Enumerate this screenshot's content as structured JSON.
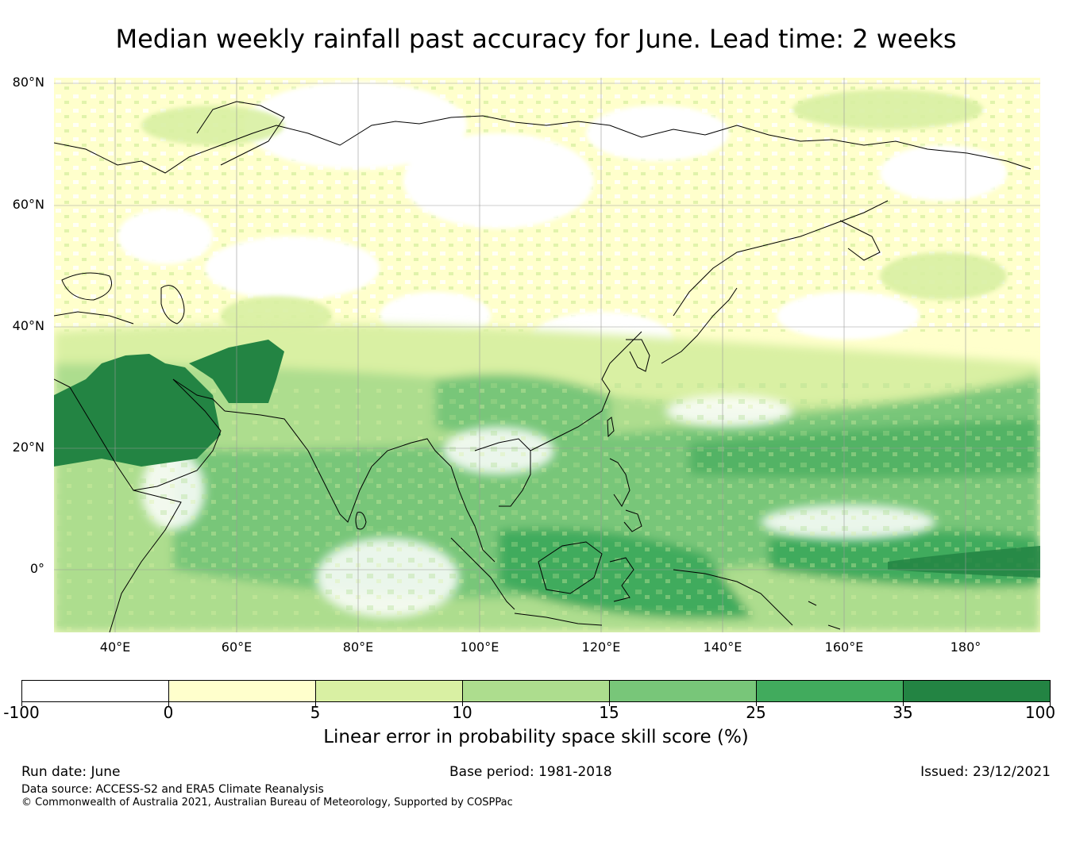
{
  "title": "Median weekly rainfall past accuracy for June. Lead time: 2 weeks",
  "map": {
    "lat_labels": [
      "80°N",
      "60°N",
      "40°N",
      "20°N",
      "0°"
    ],
    "lon_labels": [
      "40°E",
      "60°E",
      "80°E",
      "100°E",
      "120°E",
      "140°E",
      "160°E",
      "180°"
    ],
    "skill_zones": [
      {
        "region": "Northern Asia and Siberia",
        "category": "0-5"
      },
      {
        "region": "Arabian Peninsula",
        "category": "35-100"
      },
      {
        "region": "Iran and Afghanistan",
        "category": "35-100"
      },
      {
        "region": "Indian Ocean and South Asia",
        "category": "10-25"
      },
      {
        "region": "Maritime Continent",
        "category": "25-35"
      },
      {
        "region": "Western and Central Pacific",
        "category": "15-35"
      },
      {
        "region": "Equatorial Pacific near 180°",
        "category": "35-100"
      }
    ]
  },
  "colorbar": {
    "ticks": [
      "-100",
      "0",
      "5",
      "10",
      "15",
      "25",
      "35",
      "100"
    ],
    "colors": [
      "#ffffff",
      "#ffffcc",
      "#d9f0a3",
      "#addd8e",
      "#78c679",
      "#41ab5d",
      "#238443"
    ],
    "label": "Linear error in probability space skill score (%)"
  },
  "footer": {
    "run_date": "Run date: June",
    "base_period": "Base period: 1981-2018",
    "issued": "Issued: 23/12/2021",
    "data_source": "Data source: ACCESS-S2 and ERA5 Climate Reanalysis",
    "copyright": "© Commonwealth of Australia 2021, Australian Bureau of Meteorology, Supported by COSPPac"
  }
}
